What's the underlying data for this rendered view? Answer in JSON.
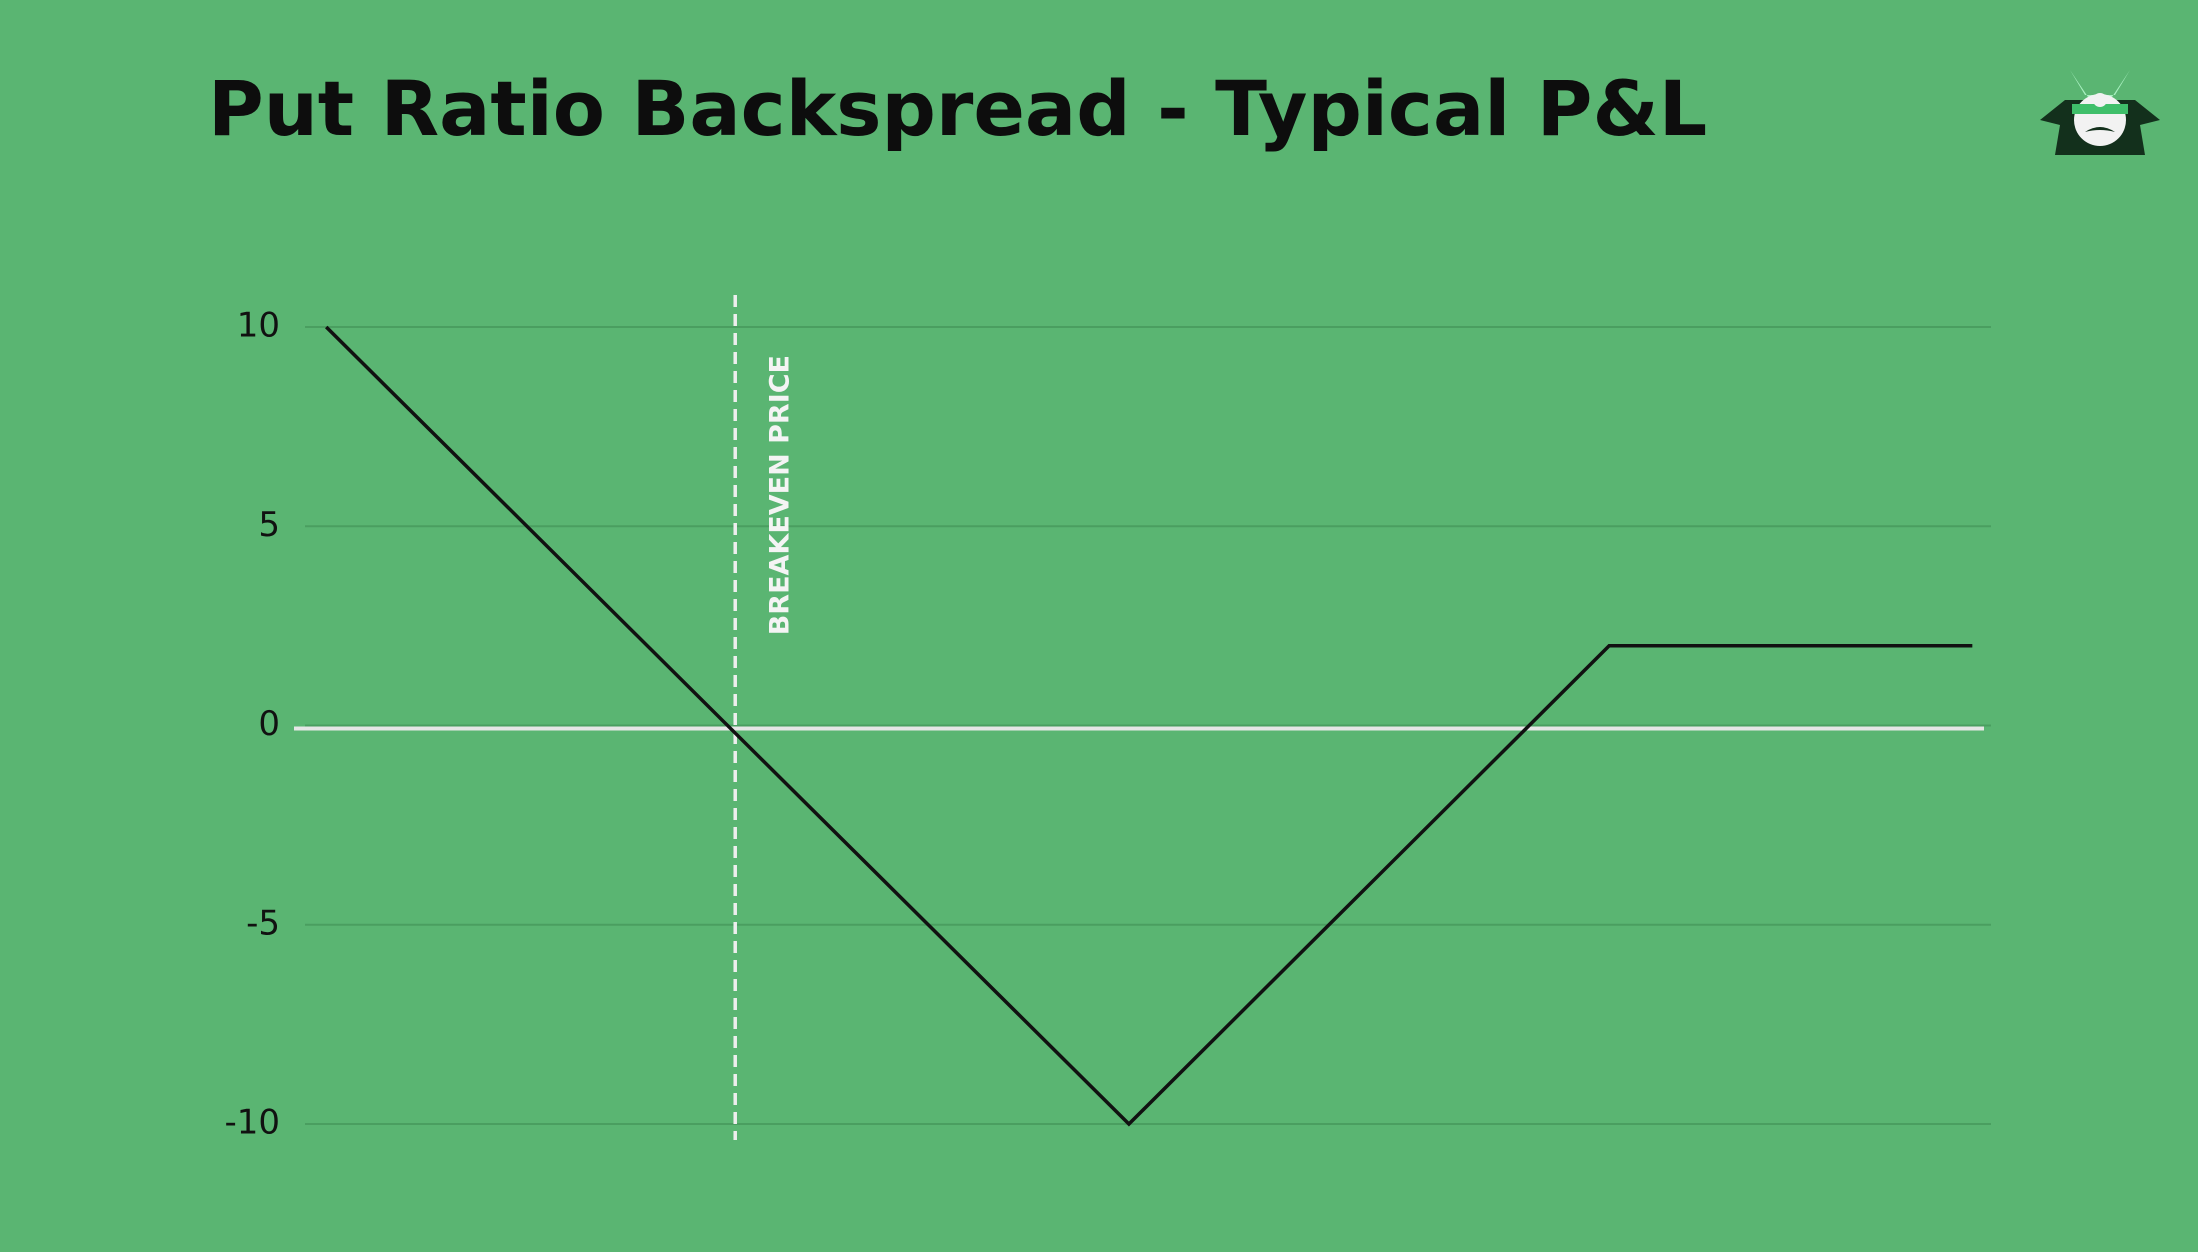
{
  "chart_data": {
    "type": "line",
    "title": "Put Ratio Backspread - Typical P&L",
    "x": [
      1.9,
      49.2,
      77.5,
      98.9
    ],
    "values": [
      10,
      -10,
      2,
      2
    ],
    "color": "#111111",
    "xlim": [
      0,
      100
    ],
    "ylim": [
      -10,
      10
    ],
    "yticks": [
      -10,
      -5,
      0,
      5,
      10
    ],
    "grid": true,
    "annotations": [
      {
        "text": "BREAKEVEN PRICE",
        "x": 26.0
      }
    ]
  }
}
